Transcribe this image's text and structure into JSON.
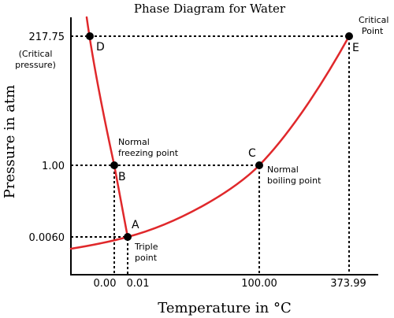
{
  "title": "Phase Diagram for Water",
  "axes": {
    "xlabel": "Temperature in °C",
    "ylabel": "Pressure in atm",
    "x_ticks": [
      "0.00",
      "0.01",
      "100.00",
      "373.99"
    ],
    "y_ticks": [
      "217.75",
      "1.00",
      "0.0060"
    ],
    "y_note_line1": "(Critical",
    "y_note_line2": "pressure)"
  },
  "points": {
    "A": {
      "letter": "A",
      "label_line1": "Triple",
      "label_line2": "point"
    },
    "B": {
      "letter": "B",
      "label_line1": "Normal",
      "label_line2": "freezing point"
    },
    "C": {
      "letter": "C",
      "label_line1": "Normal",
      "label_line2": "boiling point"
    },
    "D": {
      "letter": "D"
    },
    "E": {
      "letter": "E",
      "label_line1": "Critical",
      "label_line2": "Point"
    }
  },
  "colors": {
    "curve": "#e0282b",
    "axis": "#000000",
    "guides": "#000000",
    "points": "#000000"
  }
}
